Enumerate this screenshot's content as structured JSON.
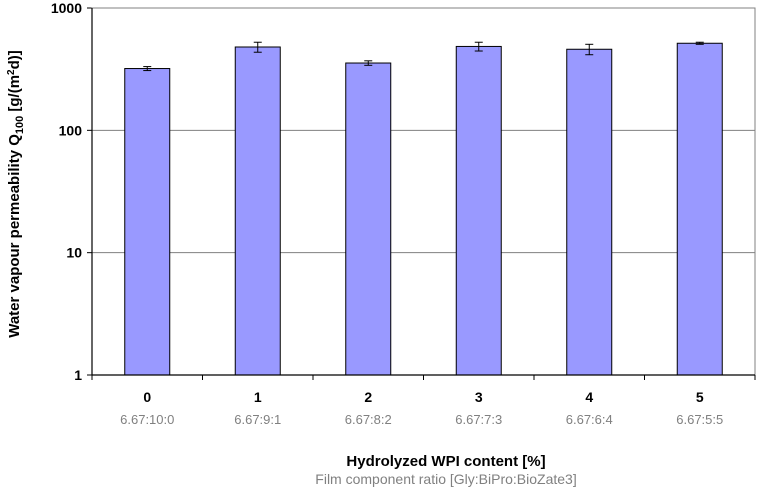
{
  "chart_data": {
    "type": "bar",
    "categories": [
      "0",
      "1",
      "2",
      "3",
      "4",
      "5"
    ],
    "secondary_categories": [
      "6.67:10:0",
      "6.67:9:1",
      "6.67:8:2",
      "6.67:7:3",
      "6.67:6:4",
      "6.67:5:5"
    ],
    "values": [
      320,
      480,
      355,
      485,
      460,
      515
    ],
    "errors": [
      12,
      45,
      15,
      40,
      45,
      10
    ],
    "ylim": [
      1,
      1000
    ],
    "yscale": "log",
    "yticks": [
      "1",
      "10",
      "100",
      "1000"
    ],
    "xlabel": "Hydrolyzed WPI content [%]",
    "xlabel2": "Film component ratio [Gly:BiPro:BioZate3]",
    "ylabel_main": "Water vapour permeability Q",
    "ylabel_sub": "100",
    "ylabel_unit_start": " [g/(m",
    "ylabel_sup": "2",
    "ylabel_unit_end": "d)]",
    "grid": true,
    "colors": {
      "bar": "#9999ff",
      "bar_stroke": "#000000",
      "grid": "#808080",
      "axis": "#000000"
    }
  }
}
